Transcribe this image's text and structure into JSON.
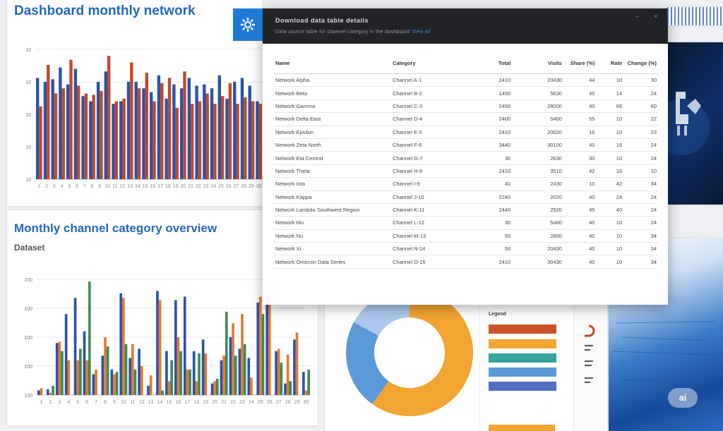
{
  "top_chart": {
    "title": "Dashboard monthly network",
    "y_ticks": [
      "10",
      "10",
      "10",
      "10",
      "10"
    ],
    "chart_data": {
      "type": "bar",
      "categories": [
        "1",
        "2",
        "3",
        "4",
        "5",
        "6",
        "7",
        "8",
        "9",
        "10",
        "11",
        "12",
        "13",
        "14",
        "15",
        "16",
        "17",
        "18",
        "19",
        "20",
        "21",
        "22",
        "23",
        "24",
        "25",
        "26",
        "27",
        "28",
        "29",
        "30"
      ],
      "series": [
        {
          "color": "#2a52a8",
          "values": [
            78,
            75,
            77,
            86,
            73,
            85,
            64,
            60,
            75,
            83,
            58,
            60,
            75,
            75,
            70,
            67,
            80,
            62,
            73,
            70,
            78,
            72,
            73,
            70,
            80,
            62,
            75,
            78,
            72,
            60
          ]
        },
        {
          "color": "#c0492a",
          "values": [
            56,
            88,
            66,
            70,
            92,
            72,
            66,
            65,
            68,
            95,
            60,
            62,
            90,
            70,
            82,
            60,
            74,
            78,
            55,
            83,
            58,
            60,
            66,
            58,
            64,
            74,
            58,
            63,
            60,
            58
          ]
        }
      ],
      "ylim": [
        0,
        100
      ]
    }
  },
  "bottom_chart": {
    "title": "Monthly channel category overview",
    "subtitle": "Dataset",
    "y_ticks": [
      "100",
      "100",
      "100",
      "100",
      "100"
    ],
    "chart_data": {
      "type": "bar",
      "categories": [
        "1",
        "2",
        "3",
        "4",
        "5",
        "6",
        "7",
        "8",
        "9",
        "10",
        "11",
        "12",
        "13",
        "14",
        "15",
        "16",
        "17",
        "18",
        "19",
        "20",
        "21",
        "22",
        "23",
        "24",
        "25",
        "26",
        "27",
        "28",
        "29",
        "30"
      ],
      "series": [
        {
          "color": "#2a52a8",
          "values": [
            4,
            5,
            45,
            70,
            84,
            55,
            18,
            34,
            22,
            88,
            32,
            40,
            8,
            90,
            38,
            82,
            85,
            38,
            48,
            10,
            30,
            50,
            40,
            32,
            80,
            92,
            38,
            10,
            48,
            20
          ]
        },
        {
          "color": "#e07a32",
          "values": [
            6,
            2,
            46,
            30,
            30,
            30,
            22,
            50,
            18,
            84,
            44,
            25,
            17,
            82,
            12,
            50,
            22,
            12,
            36,
            12,
            34,
            62,
            70,
            15,
            85,
            88,
            40,
            35,
            54,
            4
          ]
        },
        {
          "color": "#3f8a54",
          "values": [
            0,
            8,
            38,
            0,
            40,
            98,
            0,
            42,
            20,
            44,
            22,
            0,
            0,
            4,
            30,
            38,
            22,
            36,
            0,
            14,
            72,
            34,
            44,
            0,
            70,
            0,
            28,
            12,
            0,
            22
          ]
        }
      ],
      "ylim": [
        0,
        100
      ]
    }
  },
  "modal": {
    "title": "Download data table details",
    "subtitle": "Data source table for channel category in the dashboard",
    "subtitle_link": "View all",
    "minimize_glyph": "–",
    "close_glyph": "×",
    "headers": [
      "Name",
      "Category",
      "Total",
      "Visits",
      "Share (%)",
      "Rate",
      "Change (%)"
    ],
    "rows": [
      [
        "Network Alpha",
        "Channel A-1",
        "2410",
        "20430",
        "44",
        "10",
        "30"
      ],
      [
        "Network Beta",
        "Channel B-2",
        "1450",
        "5630",
        "45",
        "14",
        "24"
      ],
      [
        "Network Gamma",
        "Channel C-3",
        "2450",
        "28000",
        "40",
        "66",
        "60"
      ],
      [
        "Network Delta East",
        "Channel D-4",
        "2400",
        "5460",
        "55",
        "10",
        "22"
      ],
      [
        "Network Epsilon",
        "Channel E-5",
        "2410",
        "20020",
        "16",
        "10",
        "23"
      ],
      [
        "Network Zeta North",
        "Channel F-6",
        "3440",
        "30100",
        "40",
        "16",
        "24"
      ],
      [
        "Network Eta Central",
        "Channel G-7",
        "30",
        "2630",
        "30",
        "10",
        "24"
      ],
      [
        "Network Theta",
        "Channel H-8",
        "2410",
        "3510",
        "42",
        "16",
        "10"
      ],
      [
        "Network Iota",
        "Channel I-9",
        "40",
        "2430",
        "10",
        "42",
        "34"
      ],
      [
        "Network Kappa",
        "Channel J-10",
        "2240",
        "2020",
        "40",
        "24",
        "24"
      ],
      [
        "Network Lambda Southwest Region",
        "Channel K-11",
        "2440",
        "2520",
        "45",
        "40",
        "24"
      ],
      [
        "Network Mu",
        "Channel L-12",
        "30",
        "5480",
        "40",
        "10",
        "24"
      ],
      [
        "Network Nu",
        "Channel M-13",
        "50",
        "2800",
        "40",
        "10",
        "34"
      ],
      [
        "Network Xi",
        "Channel N-14",
        "50",
        "20430",
        "40",
        "10",
        "34"
      ],
      [
        "Network Omicron Data Series",
        "Channel O-15",
        "2410",
        "30430",
        "40",
        "10",
        "34"
      ]
    ]
  },
  "donut_chart": {
    "chart_data": {
      "type": "pie",
      "values": [
        60,
        23,
        17
      ],
      "colors": [
        "#f2a532",
        "#5b9ad6",
        "#aec8ee"
      ]
    }
  },
  "legend_panel": {
    "header": "Legend",
    "items": [
      {
        "color": "#c8562a"
      },
      {
        "color": "#f2a532"
      },
      {
        "color": "#36a3a0"
      },
      {
        "color": "#5b9ad6"
      },
      {
        "color": "#4f6fc0"
      }
    ]
  },
  "watermark": "ai"
}
